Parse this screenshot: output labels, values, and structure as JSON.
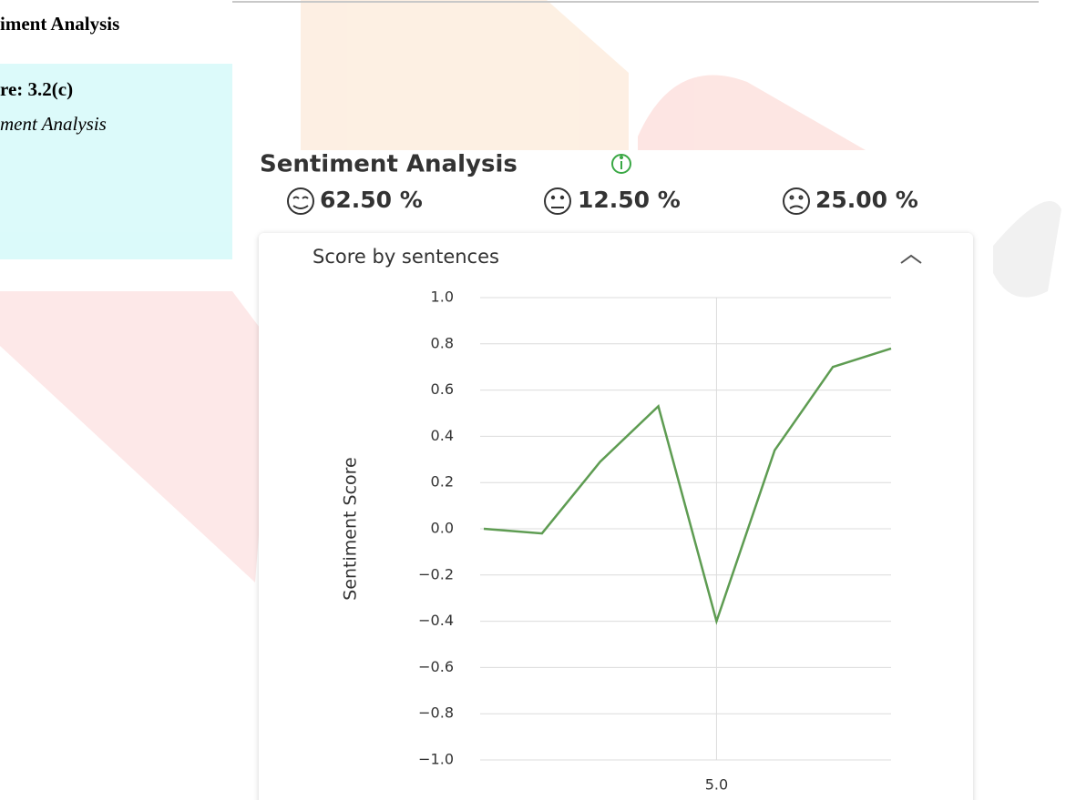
{
  "page_text": {
    "heading": "iment Analysis",
    "figure_number": "re: 3.2(c)",
    "figure_caption": "ment Analysis"
  },
  "panel": {
    "title": "Sentiment Analysis",
    "summary": [
      "62.50 %",
      "12.50 %",
      "25.00 %"
    ]
  },
  "chart_data": {
    "type": "line",
    "title": "Score by sentences",
    "y_label": "Sentiment Score",
    "x": [
      1,
      2,
      3,
      4,
      5,
      6,
      7,
      8
    ],
    "values": [
      0.0,
      -0.02,
      0.29,
      0.53,
      -0.4,
      0.34,
      0.7,
      0.78
    ],
    "color": "#5e9c52",
    "xlim": [
      1,
      8
    ],
    "xticks": [
      {
        "value": 5,
        "label": "5.0"
      }
    ],
    "ylim": [
      -1,
      1
    ],
    "yticks": [
      {
        "value": 1,
        "label": "1.0"
      },
      {
        "value": 0.8,
        "label": "0.8"
      },
      {
        "value": 0.6,
        "label": "0.6"
      },
      {
        "value": 0.4,
        "label": "0.4"
      },
      {
        "value": 0.2,
        "label": "0.2"
      },
      {
        "value": 0,
        "label": "0.0"
      },
      {
        "value": -0.2,
        "label": "−0.2"
      },
      {
        "value": -0.4,
        "label": "−0.4"
      },
      {
        "value": -0.6,
        "label": "−0.6"
      },
      {
        "value": -0.8,
        "label": "−0.8"
      },
      {
        "value": -1,
        "label": "−1.0"
      }
    ],
    "grid": true
  }
}
